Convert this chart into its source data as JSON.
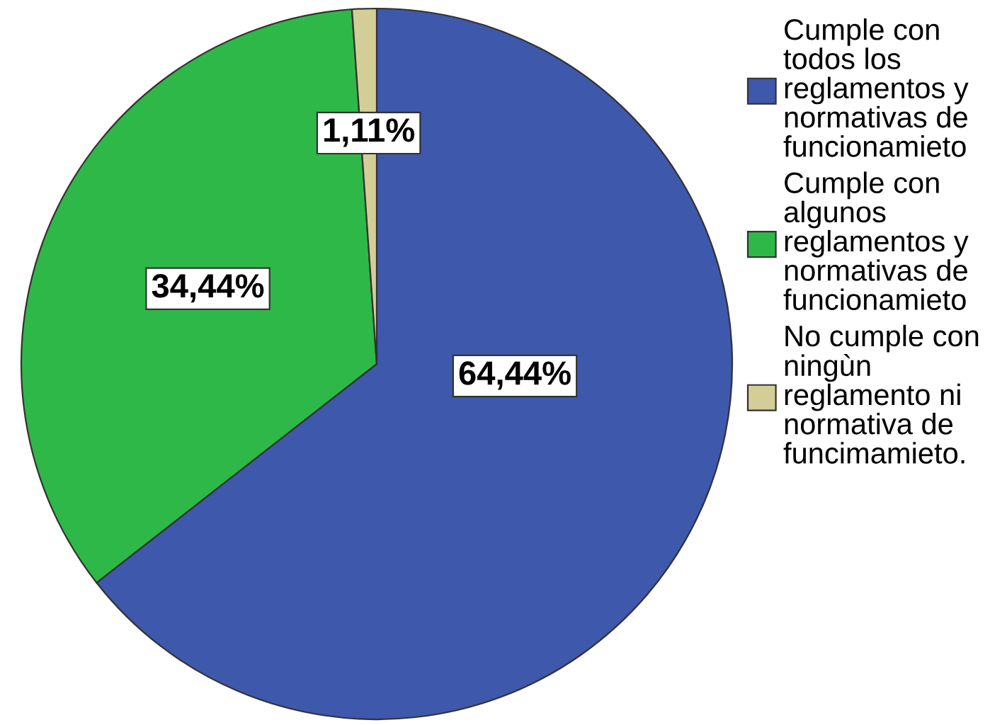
{
  "chart_data": {
    "type": "pie",
    "categories": [
      "Cumple con\ntodos los\nreglamentos y\nnormativas de\nfuncionamieto",
      "Cumple con\nalgunos\nreglamentos y\nnormativas de\nfuncionamieto",
      "No cumple con\nningùn\nreglamento ni\nnormativa de\nfuncimamieto."
    ],
    "values": [
      64.44,
      34.44,
      1.11
    ],
    "colors": [
      "#3e58ac",
      "#2eb848",
      "#d3ce97"
    ],
    "value_labels": [
      "64,44%",
      "34,44%",
      "1,11%"
    ],
    "legend": "right"
  }
}
